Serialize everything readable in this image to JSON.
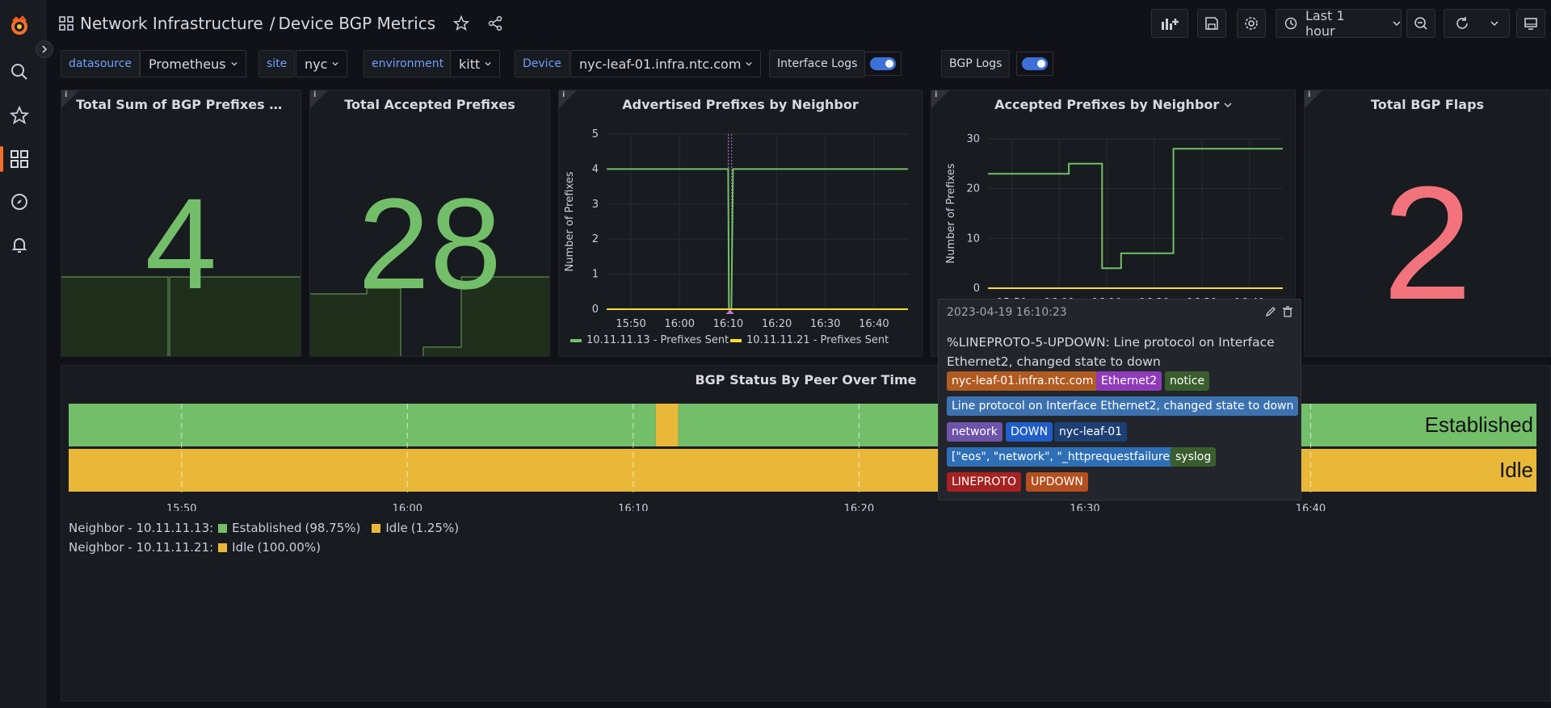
{
  "breadcrumb": {
    "folder": "Network Infrastructure",
    "sep": "/",
    "dashboard": "Device BGP Metrics"
  },
  "toolbar": {
    "time_range": "Last 1 hour"
  },
  "variables": [
    {
      "label": "datasource",
      "value": "Prometheus"
    },
    {
      "label": "site",
      "value": "nyc"
    },
    {
      "label": "environment",
      "value": "kitt"
    },
    {
      "label": "Device",
      "value": "nyc-leaf-01.infra.ntc.com"
    }
  ],
  "toggles": [
    {
      "label": "Interface Logs",
      "on": true
    },
    {
      "label": "BGP Logs",
      "on": true
    }
  ],
  "panels": {
    "adv_sum": {
      "title": "Total Sum of BGP Prefixes Adve...",
      "value": "4",
      "color": "#73bf69"
    },
    "accepted_total": {
      "title": "Total Accepted Prefixes",
      "value": "28",
      "color": "#73bf69"
    },
    "bgp_flaps": {
      "title": "Total BGP Flaps",
      "value": "2",
      "color": "#f2737c"
    },
    "status": {
      "title": "BGP Status By Peer Over Time"
    }
  },
  "chart_data": [
    {
      "type": "line",
      "title": "Advertised Prefixes by Neighbor",
      "ylabel": "Number of Prefixes",
      "xlabel": "",
      "x_ticks": [
        "15:50",
        "16:00",
        "16:10",
        "16:20",
        "16:30",
        "16:40"
      ],
      "y_ticks": [
        "0",
        "1",
        "2",
        "3",
        "4",
        "5"
      ],
      "ylim": [
        0,
        5
      ],
      "series": [
        {
          "name": "10.11.11.13 - Prefixes Sent",
          "color": "#73bf69",
          "points": [
            [
              "15:45",
              4
            ],
            [
              "16:10",
              4
            ],
            [
              "16:10:10",
              0
            ],
            [
              "16:10:40",
              0
            ],
            [
              "16:11",
              4
            ],
            [
              "16:47",
              4
            ]
          ]
        },
        {
          "name": "10.11.11.21 - Prefixes Sent",
          "color": "#fade2a",
          "points": [
            [
              "15:45",
              0
            ],
            [
              "16:47",
              0
            ]
          ]
        }
      ],
      "annotation": "16:10:23"
    },
    {
      "type": "line",
      "title": "Accepted Prefixes by Neighbor",
      "ylabel": "Number of Prefixes",
      "xlabel": "",
      "x_ticks": [
        "15:50",
        "16:00",
        "16:10",
        "16:20",
        "16:30",
        "16:40"
      ],
      "y_ticks": [
        "0",
        "10",
        "20",
        "30"
      ],
      "ylim": [
        0,
        30
      ],
      "series": [
        {
          "name": "10.11.11.13",
          "color": "#73bf69",
          "points": [
            [
              "15:45",
              23
            ],
            [
              "16:02",
              23
            ],
            [
              "16:02",
              25
            ],
            [
              "16:09",
              25
            ],
            [
              "16:09",
              4
            ],
            [
              "16:13",
              4
            ],
            [
              "16:13",
              7
            ],
            [
              "16:24",
              7
            ],
            [
              "16:24",
              28
            ],
            [
              "16:47",
              28
            ]
          ]
        },
        {
          "name": "10.11.11.21",
          "color": "#fade2a",
          "points": [
            [
              "15:45",
              0
            ],
            [
              "16:47",
              0
            ]
          ]
        }
      ]
    },
    {
      "type": "state-timeline",
      "title": "BGP Status By Peer Over Time",
      "x_ticks": [
        "15:50",
        "16:00",
        "16:10",
        "16:20",
        "16:30",
        "16:40"
      ],
      "rows": [
        {
          "name": "Neighbor - 10.11.11.13",
          "segments": [
            [
              "15:45",
              "16:11",
              "Established"
            ],
            [
              "16:11",
              "16:12",
              "Idle"
            ],
            [
              "16:12",
              "16:50",
              "Established"
            ]
          ],
          "label": "Established"
        },
        {
          "name": "Neighbor - 10.11.11.21",
          "segments": [
            [
              "15:45",
              "16:50",
              "Idle"
            ]
          ],
          "label": "Idle"
        }
      ],
      "state_colors": {
        "Established": "#73bf69",
        "Idle": "#eab839"
      },
      "legend": [
        {
          "row": "Neighbor - 10.11.11.13:",
          "items": [
            {
              "state": "Established",
              "pct": "(98.75%)"
            },
            {
              "state": "Idle",
              "pct": "(1.25%)"
            }
          ]
        },
        {
          "row": "Neighbor - 10.11.11.21:",
          "items": [
            {
              "state": "Idle",
              "pct": "(100.00%)"
            }
          ]
        }
      ]
    }
  ],
  "tooltip": {
    "time": "2023-04-19 16:10:23",
    "message": "%LINEPROTO-5-UPDOWN: Line protocol on Interface Ethernet2, changed state to down",
    "tags": [
      {
        "text": "nyc-leaf-01.infra.ntc.com",
        "color": "#b15b21"
      },
      {
        "text": "Ethernet2",
        "color": "#8f3bb8"
      },
      {
        "text": "notice",
        "color": "#3a5d2d"
      },
      {
        "text": "Line protocol on Interface Ethernet2, changed state to down",
        "color": "#3d72b0"
      },
      {
        "text": "network",
        "color": "#6e54a8"
      },
      {
        "text": "DOWN",
        "color": "#1f5ec9"
      },
      {
        "text": "nyc-leaf-01",
        "color": "#1d3f73"
      },
      {
        "text": "[\"eos\", \"network\", \"_httprequestfailure\"]",
        "color": "#2e6fb5"
      },
      {
        "text": "syslog",
        "color": "#3a5d2d"
      },
      {
        "text": "LINEPROTO",
        "color": "#a62121"
      },
      {
        "text": "UPDOWN",
        "color": "#b54f1f"
      }
    ]
  }
}
